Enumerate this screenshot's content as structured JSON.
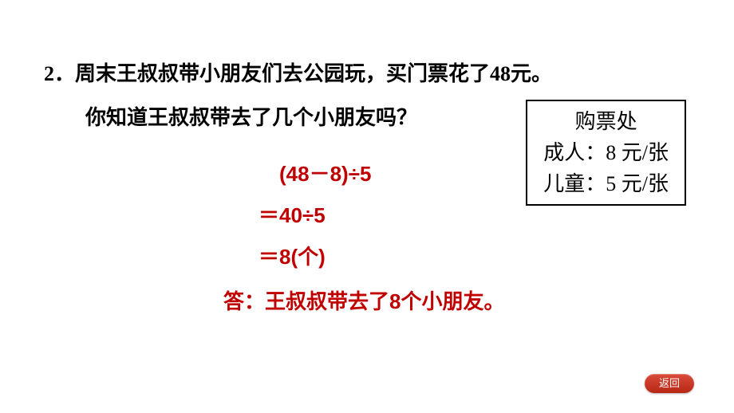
{
  "question": {
    "number": "2．",
    "line1": "周末王叔叔带小朋友们去公园玩，买门票花了48元。",
    "line2": "你知道王叔叔带去了几个小朋友吗？"
  },
  "ticketBox": {
    "title": "购票处",
    "adult": "成人：8 元/张",
    "child": "儿童：5 元/张"
  },
  "solution": {
    "step1": "(48－8)÷5",
    "step2_eq": "＝",
    "step2_val": "40÷5",
    "step3_eq": "＝",
    "step3_val": "8(个)",
    "answer": "答：王叔叔带去了8个小朋友。"
  },
  "returnBtn": {
    "label": "返回"
  },
  "colors": {
    "text": "#000000",
    "solution": "#c00000",
    "btnBg": "#c83a28",
    "btnText": "#ffffff"
  }
}
